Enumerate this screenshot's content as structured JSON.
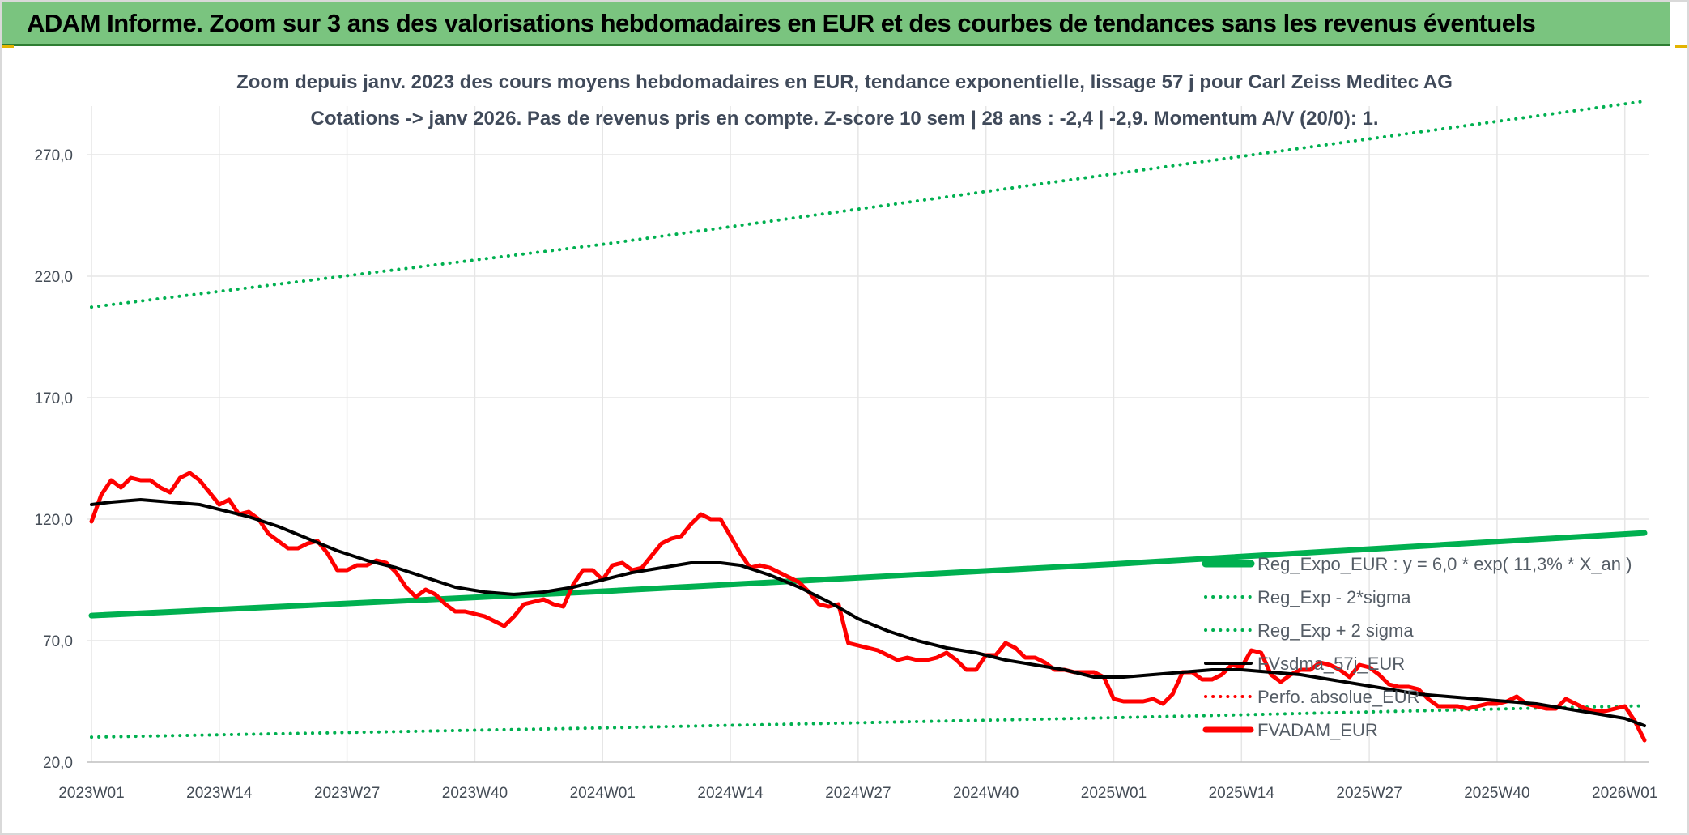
{
  "header": {
    "title": "ADAM Informe. Zoom sur 3 ans des valorisations hebdomadaires en EUR et des courbes de tendances sans les revenus éventuels"
  },
  "colors": {
    "banner": "#7ac47f",
    "reg_green": "#00b050",
    "smooth_black": "#000000",
    "price_red": "#ff0000",
    "grid": "#e6e6e6"
  },
  "chart_data": {
    "type": "line",
    "title": "Zoom depuis janv. 2023 des cours moyens hebdomadaires en EUR, tendance exponentielle, lissage 57 j pour Carl Zeiss Meditec AG",
    "subtitle": "Cotations -> janv 2026. Pas de revenus pris en compte. Z-score 10 sem | 28 ans : -2,4 | -2,9. Momentum A/V (20/0): 1.",
    "xlabel": "",
    "ylabel": "",
    "ylim": [
      20,
      290
    ],
    "yticks": [
      20,
      70,
      120,
      170,
      220,
      270
    ],
    "ytick_labels": [
      "20,0",
      "70,0",
      "120,0",
      "170,0",
      "220,0",
      "270,0"
    ],
    "x_range": [
      1,
      159
    ],
    "xticks": [
      1,
      14,
      27,
      40,
      53,
      66,
      79,
      92,
      105,
      118,
      131,
      144,
      157
    ],
    "xtick_labels": [
      "2023W01",
      "2023W14",
      "2023W27",
      "2023W40",
      "2024W01",
      "2024W14",
      "2024W27",
      "2024W40",
      "2025W01",
      "2025W14",
      "2025W27",
      "2025W40",
      "2026W01"
    ],
    "grid": true,
    "legend_position": "bottom-right",
    "series": [
      {
        "name": "Reg_Expo_EUR : y = 6,0 * exp( 11,3% *  X_an )",
        "style": "thick-solid",
        "color": "#00b050",
        "points": [
          [
            1,
            80.3
          ],
          [
            53,
            90.3
          ],
          [
            105,
            101.5
          ],
          [
            159,
            114.3
          ]
        ]
      },
      {
        "name": "Reg_Exp - 2*sigma",
        "style": "dotted",
        "color": "#00b050",
        "points": [
          [
            1,
            30.3
          ],
          [
            53,
            34.1
          ],
          [
            105,
            38.3
          ],
          [
            159,
            43.2
          ]
        ]
      },
      {
        "name": "Reg_Exp + 2 sigma",
        "style": "dotted",
        "color": "#00b050",
        "points": [
          [
            1,
            207.3
          ],
          [
            53,
            233.1
          ],
          [
            105,
            262.1
          ],
          [
            159,
            292.0
          ]
        ]
      },
      {
        "name": "FVsdma_57j_EUR",
        "style": "solid",
        "color": "#000000",
        "points": [
          [
            1,
            126
          ],
          [
            3,
            127
          ],
          [
            6,
            128
          ],
          [
            9,
            127
          ],
          [
            12,
            126
          ],
          [
            14,
            124
          ],
          [
            17,
            121
          ],
          [
            20,
            117
          ],
          [
            23,
            112
          ],
          [
            26,
            107
          ],
          [
            29,
            103
          ],
          [
            32,
            100
          ],
          [
            35,
            96
          ],
          [
            38,
            92
          ],
          [
            41,
            90
          ],
          [
            44,
            89
          ],
          [
            47,
            90
          ],
          [
            50,
            92
          ],
          [
            53,
            95
          ],
          [
            56,
            98
          ],
          [
            59,
            100
          ],
          [
            62,
            102
          ],
          [
            65,
            102
          ],
          [
            67,
            101
          ],
          [
            70,
            97
          ],
          [
            73,
            92
          ],
          [
            76,
            86
          ],
          [
            79,
            79
          ],
          [
            82,
            74
          ],
          [
            85,
            70
          ],
          [
            88,
            67
          ],
          [
            91,
            65
          ],
          [
            94,
            62
          ],
          [
            97,
            60
          ],
          [
            100,
            58
          ],
          [
            103,
            55
          ],
          [
            106,
            55
          ],
          [
            109,
            56
          ],
          [
            112,
            57
          ],
          [
            115,
            58
          ],
          [
            118,
            58
          ],
          [
            121,
            57
          ],
          [
            124,
            56
          ],
          [
            127,
            54
          ],
          [
            130,
            52
          ],
          [
            133,
            50
          ],
          [
            136,
            48
          ],
          [
            139,
            47
          ],
          [
            142,
            46
          ],
          [
            145,
            45
          ],
          [
            148,
            44
          ],
          [
            151,
            42
          ],
          [
            154,
            40
          ],
          [
            157,
            38
          ],
          [
            159,
            35
          ]
        ]
      },
      {
        "name": "Perfo. absolue_EUR",
        "style": "dotted",
        "color": "#ff0000",
        "points": []
      },
      {
        "name": "FVADAM_EUR",
        "style": "thick-solid",
        "color": "#ff0000",
        "points": [
          [
            1,
            119
          ],
          [
            2,
            130
          ],
          [
            3,
            136
          ],
          [
            4,
            133
          ],
          [
            5,
            137
          ],
          [
            6,
            136
          ],
          [
            7,
            136
          ],
          [
            8,
            133
          ],
          [
            9,
            131
          ],
          [
            10,
            137
          ],
          [
            11,
            139
          ],
          [
            12,
            136
          ],
          [
            13,
            131
          ],
          [
            14,
            126
          ],
          [
            15,
            128
          ],
          [
            16,
            122
          ],
          [
            17,
            123
          ],
          [
            18,
            120
          ],
          [
            19,
            114
          ],
          [
            20,
            111
          ],
          [
            21,
            108
          ],
          [
            22,
            108
          ],
          [
            23,
            110
          ],
          [
            24,
            111
          ],
          [
            25,
            106
          ],
          [
            26,
            99
          ],
          [
            27,
            99
          ],
          [
            28,
            101
          ],
          [
            29,
            101
          ],
          [
            30,
            103
          ],
          [
            31,
            102
          ],
          [
            32,
            98
          ],
          [
            33,
            92
          ],
          [
            34,
            88
          ],
          [
            35,
            91
          ],
          [
            36,
            89
          ],
          [
            37,
            85
          ],
          [
            38,
            82
          ],
          [
            39,
            82
          ],
          [
            40,
            81
          ],
          [
            41,
            80
          ],
          [
            42,
            78
          ],
          [
            43,
            76
          ],
          [
            44,
            80
          ],
          [
            45,
            85
          ],
          [
            46,
            86
          ],
          [
            47,
            87
          ],
          [
            48,
            85
          ],
          [
            49,
            84
          ],
          [
            50,
            93
          ],
          [
            51,
            99
          ],
          [
            52,
            99
          ],
          [
            53,
            95
          ],
          [
            54,
            101
          ],
          [
            55,
            102
          ],
          [
            56,
            99
          ],
          [
            57,
            100
          ],
          [
            58,
            105
          ],
          [
            59,
            110
          ],
          [
            60,
            112
          ],
          [
            61,
            113
          ],
          [
            62,
            118
          ],
          [
            63,
            122
          ],
          [
            64,
            120
          ],
          [
            65,
            120
          ],
          [
            66,
            113
          ],
          [
            67,
            106
          ],
          [
            68,
            100
          ],
          [
            69,
            101
          ],
          [
            70,
            100
          ],
          [
            71,
            98
          ],
          [
            72,
            96
          ],
          [
            73,
            94
          ],
          [
            74,
            90
          ],
          [
            75,
            85
          ],
          [
            76,
            84
          ],
          [
            77,
            85
          ],
          [
            78,
            69
          ],
          [
            79,
            68
          ],
          [
            80,
            67
          ],
          [
            81,
            66
          ],
          [
            82,
            64
          ],
          [
            83,
            62
          ],
          [
            84,
            63
          ],
          [
            85,
            62
          ],
          [
            86,
            62
          ],
          [
            87,
            63
          ],
          [
            88,
            65
          ],
          [
            89,
            62
          ],
          [
            90,
            58
          ],
          [
            91,
            58
          ],
          [
            92,
            64
          ],
          [
            93,
            64
          ],
          [
            94,
            69
          ],
          [
            95,
            67
          ],
          [
            96,
            63
          ],
          [
            97,
            63
          ],
          [
            98,
            61
          ],
          [
            99,
            58
          ],
          [
            100,
            58
          ],
          [
            101,
            57
          ],
          [
            102,
            57
          ],
          [
            103,
            57
          ],
          [
            104,
            55
          ],
          [
            105,
            46
          ],
          [
            106,
            45
          ],
          [
            107,
            45
          ],
          [
            108,
            45
          ],
          [
            109,
            46
          ],
          [
            110,
            44
          ],
          [
            111,
            48
          ],
          [
            112,
            57
          ],
          [
            113,
            57
          ],
          [
            114,
            54
          ],
          [
            115,
            54
          ],
          [
            116,
            56
          ],
          [
            117,
            60
          ],
          [
            118,
            59
          ],
          [
            119,
            66
          ],
          [
            120,
            65
          ],
          [
            121,
            56
          ],
          [
            122,
            53
          ],
          [
            123,
            56
          ],
          [
            124,
            58
          ],
          [
            125,
            58
          ],
          [
            126,
            61
          ],
          [
            127,
            60
          ],
          [
            128,
            58
          ],
          [
            129,
            55
          ],
          [
            130,
            60
          ],
          [
            131,
            59
          ],
          [
            132,
            56
          ],
          [
            133,
            52
          ],
          [
            134,
            51
          ],
          [
            135,
            51
          ],
          [
            136,
            50
          ],
          [
            137,
            46
          ],
          [
            138,
            43
          ],
          [
            139,
            43
          ],
          [
            140,
            43
          ],
          [
            141,
            42
          ],
          [
            142,
            43
          ],
          [
            143,
            44
          ],
          [
            144,
            44
          ],
          [
            145,
            45
          ],
          [
            146,
            47
          ],
          [
            147,
            44
          ],
          [
            148,
            43
          ],
          [
            149,
            42
          ],
          [
            150,
            42
          ],
          [
            151,
            46
          ],
          [
            152,
            44
          ],
          [
            153,
            42
          ],
          [
            154,
            41
          ],
          [
            155,
            41
          ],
          [
            156,
            42
          ],
          [
            157,
            43
          ],
          [
            158,
            37
          ],
          [
            159,
            29
          ]
        ]
      }
    ]
  }
}
